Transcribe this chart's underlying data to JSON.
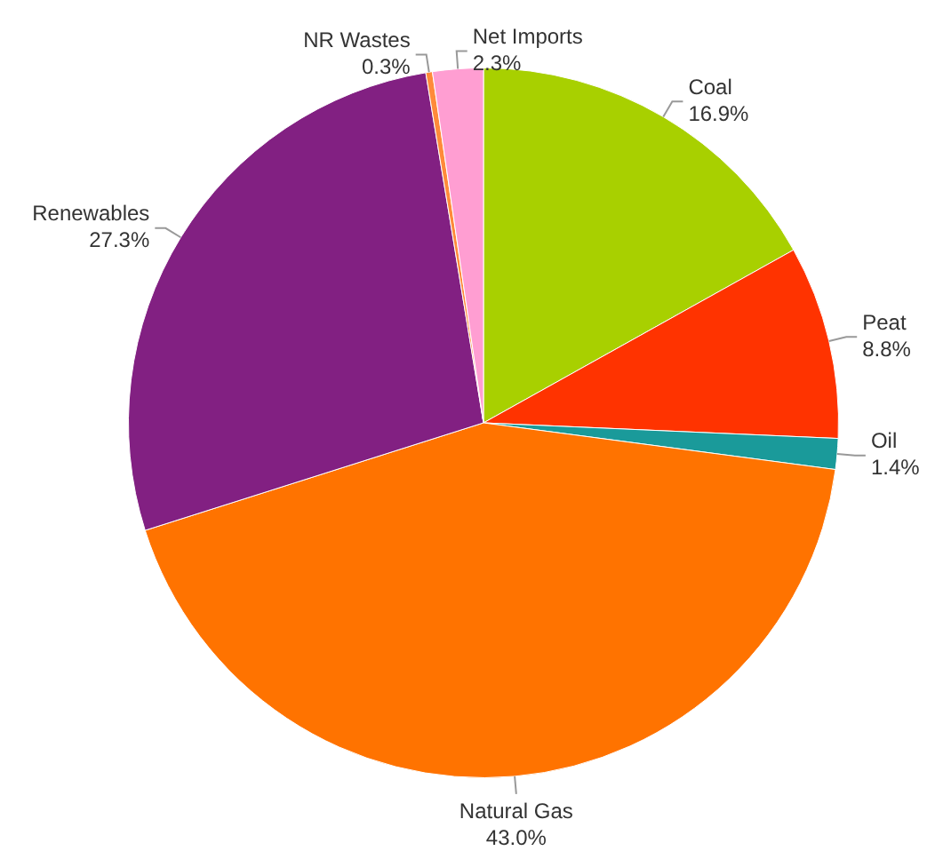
{
  "chart_data": {
    "type": "pie",
    "categories": [
      "Coal",
      "Peat",
      "Oil",
      "Natural Gas",
      "Renewables",
      "NR Wastes",
      "Net Imports"
    ],
    "values": [
      16.9,
      8.8,
      1.4,
      43.0,
      27.3,
      0.3,
      2.3
    ],
    "value_labels": [
      "16.9%",
      "8.8%",
      "1.4%",
      "43.0%",
      "27.3%",
      "0.3%",
      "2.3%"
    ],
    "colors": [
      "#a8d000",
      "#ff3300",
      "#1a9a9a",
      "#ff7300",
      "#822082",
      "#ff8a3a",
      "#ff9ed2"
    ],
    "legend": false
  }
}
